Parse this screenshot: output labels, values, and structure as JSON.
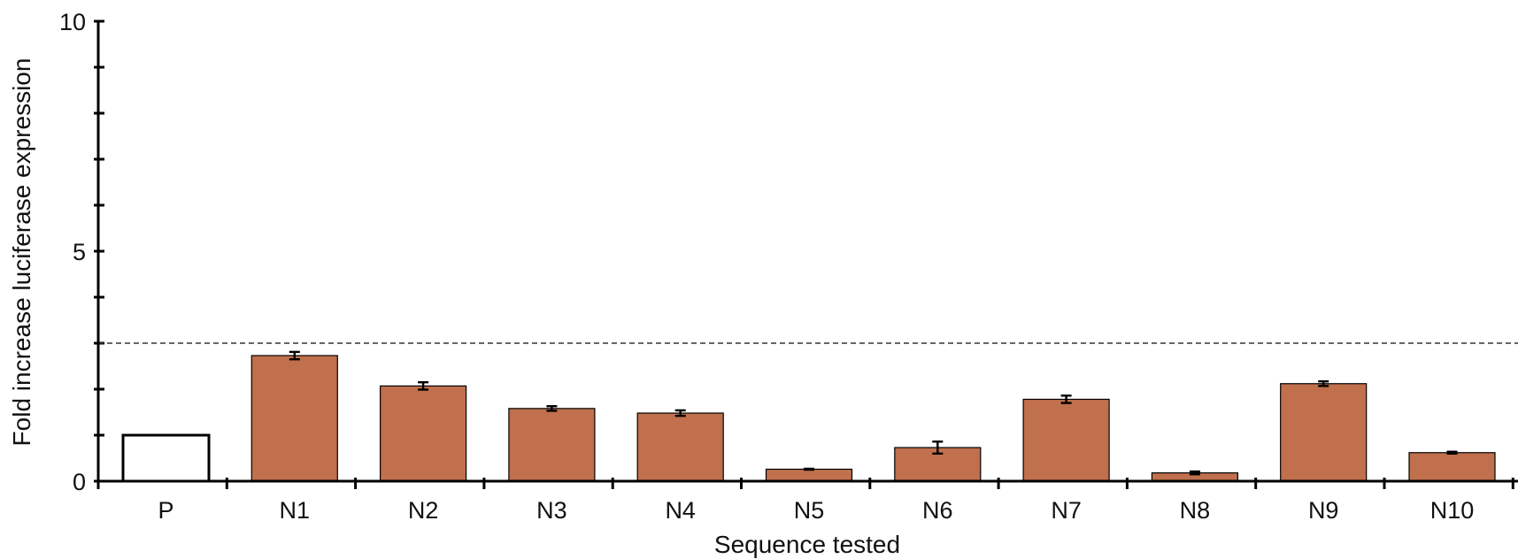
{
  "chart_data": {
    "type": "bar",
    "categories": [
      "P",
      "N1",
      "N2",
      "N3",
      "N4",
      "N5",
      "N6",
      "N7",
      "N8",
      "N9",
      "N10"
    ],
    "values": [
      1.0,
      2.73,
      2.07,
      1.58,
      1.48,
      0.26,
      0.73,
      1.78,
      0.18,
      2.12,
      0.62
    ],
    "errors": [
      0,
      0.08,
      0.08,
      0.05,
      0.06,
      0.01,
      0.13,
      0.08,
      0.03,
      0.05,
      0.02
    ],
    "bar_fills": [
      "#ffffff",
      "#c0704c",
      "#c0704c",
      "#c0704c",
      "#c0704c",
      "#c0704c",
      "#c0704c",
      "#c0704c",
      "#c0704c",
      "#c0704c",
      "#c0704c"
    ],
    "reference_line": 3.0,
    "xlabel": "Sequence tested",
    "ylabel": "Fold increase luciferase expression",
    "ylim": [
      0,
      10
    ],
    "yticks": [
      0,
      5,
      10
    ],
    "ytick_labels": [
      "0",
      "5",
      "10"
    ],
    "grid": false,
    "legend": "none"
  }
}
